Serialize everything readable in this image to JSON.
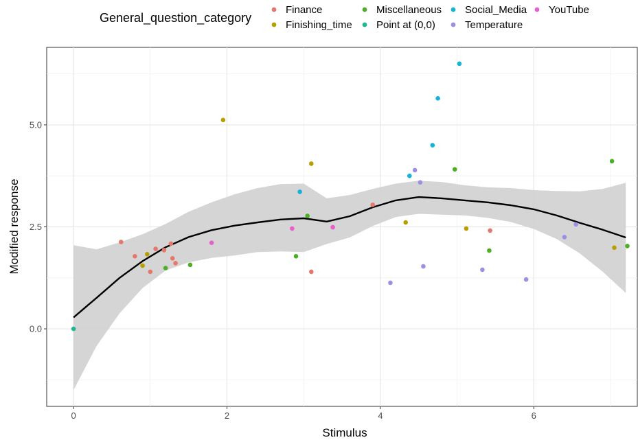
{
  "chart_data": {
    "type": "scatter",
    "xlabel": "Stimulus",
    "ylabel": "Modified response",
    "xlim": [
      -0.35,
      7.35
    ],
    "ylim": [
      -1.9,
      6.9
    ],
    "x_ticks": [
      0,
      2,
      4,
      6
    ],
    "x_tick_labels": [
      "0",
      "2",
      "4",
      "6"
    ],
    "y_ticks": [
      0.0,
      2.5,
      5.0
    ],
    "y_tick_labels": [
      "0.0",
      "2.5",
      "5.0"
    ],
    "grid": true,
    "legend": {
      "title": "General_question_category",
      "placement": "top",
      "entries": [
        "Finance",
        "Finishing_time",
        "Miscellaneous",
        "Point at (0,0)",
        "Social_Media",
        "Temperature",
        "YouTube"
      ]
    },
    "series": [
      {
        "name": "Finance",
        "color": "#E7766D",
        "points": [
          [
            0.62,
            2.13
          ],
          [
            0.8,
            1.78
          ],
          [
            1.0,
            1.4
          ],
          [
            1.07,
            1.96
          ],
          [
            1.18,
            1.93
          ],
          [
            1.27,
            2.09
          ],
          [
            1.29,
            1.73
          ],
          [
            1.33,
            1.61
          ],
          [
            3.1,
            1.4
          ],
          [
            3.9,
            3.04
          ],
          [
            5.43,
            2.41
          ]
        ]
      },
      {
        "name": "Finishing_time",
        "color": "#B79F00",
        "points": [
          [
            0.9,
            1.55
          ],
          [
            0.96,
            1.83
          ],
          [
            1.95,
            5.12
          ],
          [
            3.1,
            4.05
          ],
          [
            4.33,
            2.61
          ],
          [
            5.12,
            2.46
          ],
          [
            7.05,
            1.99
          ]
        ]
      },
      {
        "name": "Miscellaneous",
        "color": "#4DAF24",
        "points": [
          [
            1.2,
            1.49
          ],
          [
            1.52,
            1.57
          ],
          [
            2.9,
            1.78
          ],
          [
            3.05,
            2.77
          ],
          [
            4.97,
            3.91
          ],
          [
            5.42,
            1.92
          ],
          [
            7.02,
            4.11
          ],
          [
            7.22,
            2.03
          ]
        ]
      },
      {
        "name": "Point at (0,0)",
        "color": "#20B894",
        "points": [
          [
            0.0,
            0.0
          ]
        ]
      },
      {
        "name": "Social_Media",
        "color": "#14B3D8",
        "points": [
          [
            2.95,
            3.36
          ],
          [
            4.38,
            3.75
          ],
          [
            4.68,
            4.5
          ],
          [
            4.75,
            5.65
          ],
          [
            5.03,
            6.5
          ]
        ]
      },
      {
        "name": "Temperature",
        "color": "#9E8FE4",
        "points": [
          [
            4.13,
            1.13
          ],
          [
            4.45,
            3.89
          ],
          [
            4.52,
            3.59
          ],
          [
            4.56,
            1.53
          ],
          [
            5.33,
            1.45
          ],
          [
            5.9,
            1.21
          ],
          [
            6.4,
            2.25
          ],
          [
            6.55,
            2.56
          ]
        ]
      },
      {
        "name": "YouTube",
        "color": "#E85FCB",
        "points": [
          [
            1.8,
            2.11
          ],
          [
            2.85,
            2.46
          ],
          [
            3.38,
            2.49
          ]
        ]
      }
    ],
    "smooth": {
      "color": "#000000",
      "band_color": "#D3D3D3",
      "x": [
        0.0,
        0.3,
        0.6,
        0.9,
        1.2,
        1.5,
        1.8,
        2.1,
        2.4,
        2.7,
        3.0,
        3.3,
        3.6,
        3.9,
        4.2,
        4.5,
        4.8,
        5.1,
        5.4,
        5.7,
        6.0,
        6.3,
        6.6,
        6.9,
        7.2
      ],
      "y": [
        0.28,
        0.76,
        1.25,
        1.66,
        2.0,
        2.25,
        2.42,
        2.53,
        2.61,
        2.68,
        2.71,
        2.63,
        2.76,
        2.98,
        3.15,
        3.23,
        3.2,
        3.15,
        3.1,
        3.03,
        2.93,
        2.78,
        2.6,
        2.43,
        2.24
      ],
      "lower": [
        -1.5,
        -0.42,
        0.38,
        1.0,
        1.43,
        1.63,
        1.74,
        1.8,
        1.88,
        1.9,
        1.88,
        2.08,
        2.24,
        2.52,
        2.74,
        2.82,
        2.8,
        2.78,
        2.72,
        2.62,
        2.45,
        2.2,
        1.85,
        1.4,
        0.88
      ],
      "upper": [
        2.05,
        1.95,
        2.12,
        2.32,
        2.57,
        2.87,
        3.1,
        3.3,
        3.45,
        3.55,
        3.56,
        3.2,
        3.28,
        3.43,
        3.56,
        3.63,
        3.6,
        3.52,
        3.47,
        3.45,
        3.4,
        3.38,
        3.37,
        3.43,
        3.58
      ]
    }
  }
}
